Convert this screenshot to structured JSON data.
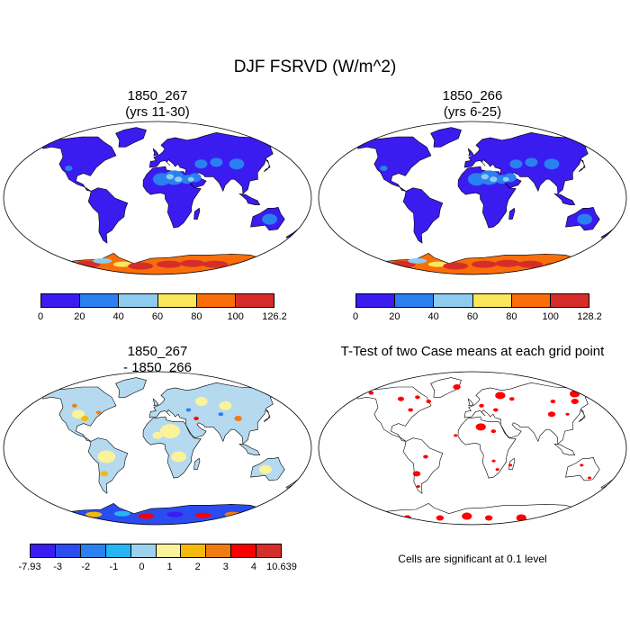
{
  "title": "DJF FSRVD (W/m^2)",
  "panels": {
    "top_left": {
      "line1": "1850_267",
      "line2": "(yrs 11-30)"
    },
    "top_right": {
      "line1": "1850_266",
      "line2": "(yrs 6-25)"
    },
    "bottom_left": {
      "line1": "1850_267",
      "line2": "- 1850_266"
    },
    "bottom_right": {
      "line1": "T-Test of two Case means at each grid point"
    }
  },
  "colorbars": {
    "top_left": {
      "colors": [
        "#3a1cf0",
        "#2a80f0",
        "#8fcbee",
        "#fbe65c",
        "#fa6e0a",
        "#d52e2a"
      ],
      "labels": [
        "0",
        "20",
        "40",
        "60",
        "80",
        "100",
        "126.2"
      ]
    },
    "top_right": {
      "colors": [
        "#3a1cf0",
        "#2a80f0",
        "#8fcbee",
        "#fbe65c",
        "#fa6e0a",
        "#d52e2a"
      ],
      "labels": [
        "0",
        "20",
        "40",
        "60",
        "80",
        "100",
        "128.2"
      ]
    },
    "bottom_left": {
      "colors": [
        "#3a1cf0",
        "#2a4cf0",
        "#2a80f0",
        "#23b6f2",
        "#9dd2ee",
        "#fbf39a",
        "#f5b90c",
        "#f27a12",
        "#fa0000",
        "#d52e2a"
      ],
      "labels": [
        "-7.93",
        "-3",
        "-2",
        "-1",
        "0",
        "1",
        "2",
        "3",
        "4",
        "10.639"
      ]
    }
  },
  "significance_note": "Cells are significant at 0.1 level",
  "significance_color": "#ff0000",
  "ocean_color": "#ffffff",
  "land_base_color": "#3a1cf0",
  "diff_land_color": "#b5d9ee"
}
